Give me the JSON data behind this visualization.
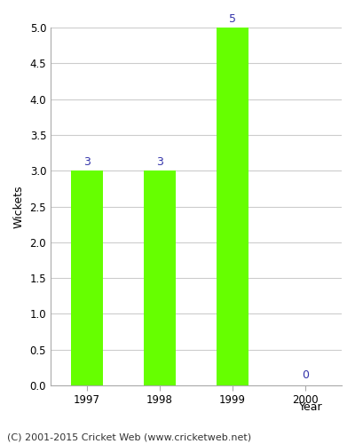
{
  "categories": [
    "1997",
    "1998",
    "1999",
    "2000"
  ],
  "values": [
    3,
    3,
    5,
    0
  ],
  "bar_color": "#66ff00",
  "label_color": "#3333aa",
  "xlabel": "Year",
  "ylabel": "Wickets",
  "ylim": [
    0,
    5.0
  ],
  "yticks": [
    0.0,
    0.5,
    1.0,
    1.5,
    2.0,
    2.5,
    3.0,
    3.5,
    4.0,
    4.5,
    5.0
  ],
  "grid_color": "#cccccc",
  "background_color": "#ffffff",
  "footnote": "(C) 2001-2015 Cricket Web (www.cricketweb.net)",
  "bar_width": 0.45,
  "label_fontsize": 9,
  "axis_label_fontsize": 9,
  "tick_fontsize": 8.5,
  "footnote_fontsize": 8
}
